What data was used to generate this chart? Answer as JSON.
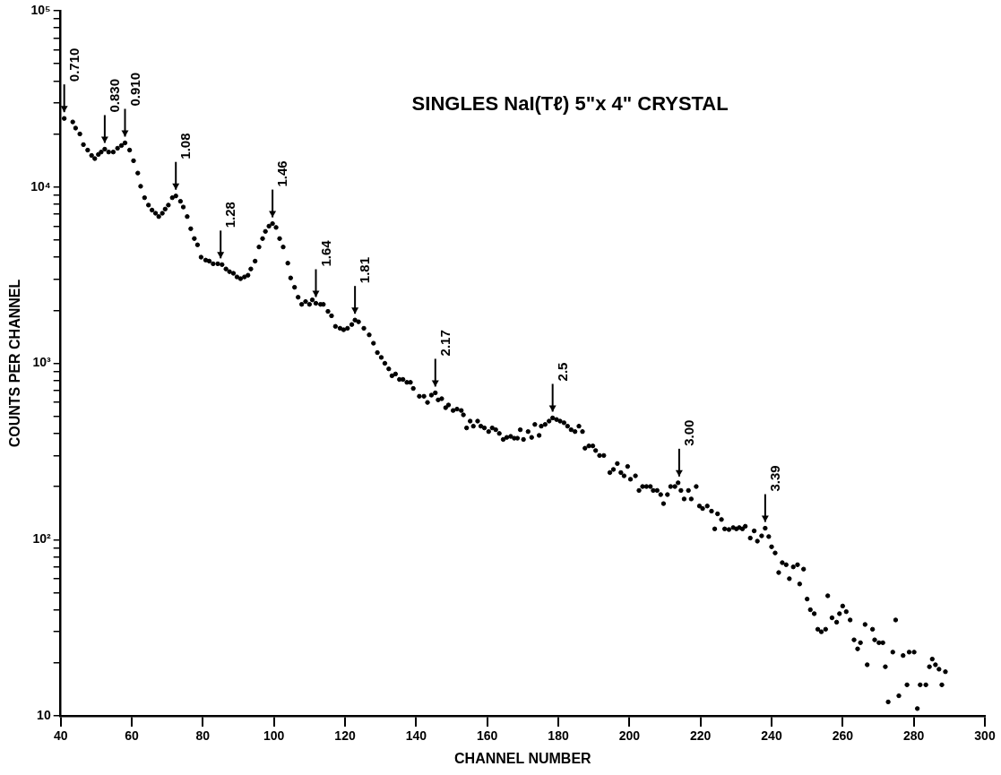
{
  "chart_data": {
    "type": "scatter",
    "title": "SINGLES NaI(Tℓ) 5\"x 4\" CRYSTAL",
    "xlabel": "CHANNEL NUMBER",
    "ylabel": "COUNTS PER CHANNEL",
    "log": "y",
    "marker": "circle",
    "legend": false,
    "xlim": [
      40,
      300
    ],
    "xticks": [
      40,
      60,
      80,
      100,
      120,
      140,
      160,
      180,
      200,
      220,
      240,
      260,
      280,
      300
    ],
    "ylim": [
      10,
      100000
    ],
    "yticks": [
      {
        "value": 10,
        "label": "10"
      },
      {
        "value": 20,
        "label": null
      },
      {
        "value": 30,
        "label": null
      },
      {
        "value": 40,
        "label": null
      },
      {
        "value": 50,
        "label": null
      },
      {
        "value": 60,
        "label": null
      },
      {
        "value": 70,
        "label": null
      },
      {
        "value": 80,
        "label": null
      },
      {
        "value": 90,
        "label": null
      },
      {
        "value": 100,
        "label": "10²"
      },
      {
        "value": 200,
        "label": null
      },
      {
        "value": 300,
        "label": null
      },
      {
        "value": 400,
        "label": null
      },
      {
        "value": 500,
        "label": null
      },
      {
        "value": 600,
        "label": null
      },
      {
        "value": 700,
        "label": null
      },
      {
        "value": 800,
        "label": null
      },
      {
        "value": 900,
        "label": null
      },
      {
        "value": 1000,
        "label": "10³"
      },
      {
        "value": 2000,
        "label": null
      },
      {
        "value": 3000,
        "label": null
      },
      {
        "value": 4000,
        "label": null
      },
      {
        "value": 5000,
        "label": null
      },
      {
        "value": 6000,
        "label": null
      },
      {
        "value": 7000,
        "label": null
      },
      {
        "value": 8000,
        "label": null
      },
      {
        "value": 9000,
        "label": null
      },
      {
        "value": 10000,
        "label": "10⁴"
      },
      {
        "value": 20000,
        "label": null
      },
      {
        "value": 30000,
        "label": null
      },
      {
        "value": 40000,
        "label": null
      },
      {
        "value": 50000,
        "label": null
      },
      {
        "value": 60000,
        "label": null
      },
      {
        "value": 70000,
        "label": null
      },
      {
        "value": 80000,
        "label": null
      },
      {
        "value": 90000,
        "label": null
      },
      {
        "value": 100000,
        "label": "10⁵"
      }
    ],
    "annotations": [
      {
        "text": "0.710",
        "x": 41,
        "y": 24500
      },
      {
        "text": "0.830",
        "x": 52.4,
        "y": 16400
      },
      {
        "text": "0.910",
        "x": 58.1,
        "y": 17800
      },
      {
        "text": "1.08",
        "x": 72.4,
        "y": 8900
      },
      {
        "text": "1.28",
        "x": 85,
        "y": 3630
      },
      {
        "text": "1.46",
        "x": 99.6,
        "y": 6200
      },
      {
        "text": "1.64",
        "x": 111.8,
        "y": 2190
      },
      {
        "text": "1.81",
        "x": 122.8,
        "y": 1760
      },
      {
        "text": "2.17",
        "x": 145.4,
        "y": 680
      },
      {
        "text": "2.5",
        "x": 178.4,
        "y": 490
      },
      {
        "text": "3.00",
        "x": 214,
        "y": 210
      },
      {
        "text": "3.39",
        "x": 238.2,
        "y": 116
      }
    ],
    "series": [
      {
        "color": "#000000",
        "x": [
          41,
          43.4,
          44.2,
          45.4,
          46.4,
          47.6,
          48.7,
          49.6,
          50.6,
          51.4,
          52.4,
          53.5,
          54.8,
          56,
          57.1,
          58.1,
          59.4,
          60.5,
          61.7,
          62.5,
          63.6,
          64.7,
          65.7,
          66.7,
          67.6,
          68.6,
          69.4,
          70.3,
          71.4,
          72.4,
          73.7,
          74.5,
          75.6,
          76.6,
          77.6,
          78.5,
          79.5,
          80.8,
          81.8,
          82.9,
          84.2,
          85.4,
          86.5,
          87.5,
          88.6,
          89.6,
          90.6,
          91.7,
          92.7,
          93.5,
          94.7,
          95.8,
          96.8,
          97.6,
          98.6,
          99.6,
          100.6,
          101.6,
          102.6,
          103.9,
          104.7,
          105.8,
          106.8,
          107.8,
          108.9,
          110,
          110.8,
          111.8,
          113.1,
          113.9,
          115.2,
          116.2,
          117.3,
          118.6,
          119.6,
          120.7,
          121.9,
          122.8,
          123.8,
          125.3,
          126.8,
          128,
          129.1,
          130.2,
          131.2,
          132.3,
          133.2,
          134.2,
          135.3,
          136.3,
          137.4,
          138.4,
          139.2,
          140.9,
          142.2,
          143.2,
          144.3,
          145.4,
          146.2,
          147.2,
          148.3,
          149.1,
          150.4,
          151.5,
          152.7,
          153.3,
          154.2,
          155.2,
          156.1,
          157.3,
          158.2,
          159.2,
          160.4,
          161.4,
          162.4,
          163.4,
          164.5,
          165.5,
          166.6,
          167.6,
          168.5,
          169.3,
          170.2,
          171.5,
          172.5,
          173.4,
          174.6,
          175.2,
          176.3,
          177.4,
          178.4,
          179.5,
          180.5,
          181.6,
          182.6,
          183.6,
          184.7,
          185.8,
          186.8,
          187.5,
          188.6,
          189.7,
          190.5,
          191.6,
          192.8,
          194.5,
          195.5,
          196.6,
          197.6,
          198.5,
          199.5,
          200.3,
          201.7,
          202.7,
          203.7,
          204.8,
          205.9,
          206.7,
          207.8,
          208.8,
          209.6,
          210.7,
          211.6,
          212.8,
          213.7,
          214.5,
          215.4,
          216.6,
          217.4,
          218.8,
          219.7,
          220.6,
          221.9,
          223.1,
          224,
          224.8,
          225.9,
          226.8,
          228,
          229.2,
          230.1,
          230.9,
          231.8,
          232.6,
          234,
          235.1,
          236,
          237.2,
          238.2,
          239.2,
          240,
          241,
          242,
          243,
          244.1,
          245,
          246.1,
          247.3,
          247.9,
          249,
          250,
          250.9,
          252,
          253,
          254,
          255.2,
          255.8,
          257,
          258.3,
          259.1,
          260,
          261,
          262.1,
          263.2,
          264.2,
          265,
          266.3,
          266.9,
          268.4,
          269,
          270.2,
          271.3,
          272,
          272.8,
          274.1,
          274.9,
          275.8,
          277,
          278.1,
          278.7,
          280.1,
          281,
          281.8,
          283.4,
          284.4,
          285.2,
          286.1,
          287.1,
          287.9,
          288.9
        ],
        "values": [
          24500,
          23400,
          21600,
          20000,
          17400,
          16200,
          15100,
          14500,
          15300,
          15800,
          16400,
          15800,
          15800,
          16600,
          17200,
          17800,
          16200,
          14100,
          12000,
          10100,
          8700,
          7900,
          7400,
          7100,
          6800,
          7100,
          7500,
          7900,
          8700,
          8900,
          8300,
          7700,
          6800,
          5800,
          5100,
          4700,
          4000,
          3850,
          3800,
          3670,
          3670,
          3630,
          3430,
          3310,
          3240,
          3090,
          3020,
          3090,
          3160,
          3430,
          3800,
          4570,
          5100,
          5600,
          6000,
          6200,
          5900,
          5100,
          4570,
          3700,
          3050,
          2700,
          2370,
          2160,
          2240,
          2160,
          2290,
          2190,
          2160,
          2160,
          1970,
          1860,
          1620,
          1580,
          1550,
          1580,
          1660,
          1760,
          1720,
          1580,
          1450,
          1300,
          1150,
          1080,
          1000,
          930,
          850,
          870,
          810,
          810,
          780,
          780,
          720,
          650,
          650,
          600,
          660,
          680,
          620,
          630,
          560,
          580,
          540,
          550,
          540,
          510,
          430,
          470,
          440,
          470,
          440,
          430,
          410,
          430,
          420,
          400,
          370,
          380,
          385,
          376,
          376,
          420,
          370,
          410,
          380,
          450,
          390,
          440,
          450,
          470,
          490,
          480,
          470,
          460,
          440,
          420,
          410,
          440,
          410,
          330,
          340,
          340,
          320,
          300,
          300,
          240,
          250,
          270,
          240,
          230,
          260,
          220,
          230,
          190,
          200,
          200,
          200,
          190,
          190,
          180,
          160,
          180,
          200,
          200,
          210,
          190,
          170,
          190,
          170,
          200,
          155,
          150,
          155,
          145,
          115,
          140,
          130,
          115,
          114,
          117,
          115,
          117,
          115,
          119,
          102,
          112,
          98,
          105,
          116,
          104,
          91,
          84,
          65,
          74,
          72,
          60,
          70,
          72,
          56,
          68,
          46,
          40,
          38,
          31,
          30,
          31,
          48,
          36,
          34,
          38,
          42,
          39,
          35,
          27,
          24,
          26,
          33,
          19.5,
          31,
          27,
          26,
          26,
          19,
          12,
          23,
          35,
          13,
          22,
          15,
          23,
          23,
          11,
          15,
          15,
          19,
          21,
          19.5,
          18.4,
          15,
          17.8
        ]
      }
    ]
  }
}
